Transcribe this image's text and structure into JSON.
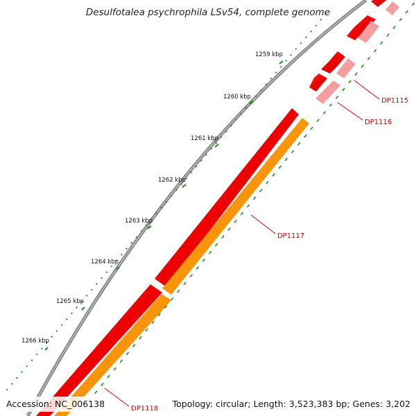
{
  "title": "Desulfotalea psychrophila LSv54, complete genome",
  "footer": {
    "accession": "Accession: NC_006138",
    "summary": "Topology: circular; Length: 3,523,383 bp; Genes: 3,202"
  },
  "ticks": [
    {
      "label": "1259 kbp",
      "kbp": 1259
    },
    {
      "label": "1260 kbp",
      "kbp": 1260
    },
    {
      "label": "1261 kbp",
      "kbp": 1261
    },
    {
      "label": "1262 kbp",
      "kbp": 1262
    },
    {
      "label": "1263 kbp",
      "kbp": 1263
    },
    {
      "label": "1264 kbp",
      "kbp": 1264
    },
    {
      "label": "1265 kbp",
      "kbp": 1265
    },
    {
      "label": "1266 kbp",
      "kbp": 1266
    }
  ],
  "genes": [
    {
      "name": "DP1115"
    },
    {
      "name": "DP1116"
    },
    {
      "name": "DP1117"
    },
    {
      "name": "DP1118"
    }
  ],
  "colors": {
    "backbone": "#8a8888",
    "forward_cds": "#ee0000",
    "reverse_cds": "#ff9800",
    "pale_cds": "#f59ea0",
    "tick": "#1a8a1a",
    "label": "#d40000"
  }
}
